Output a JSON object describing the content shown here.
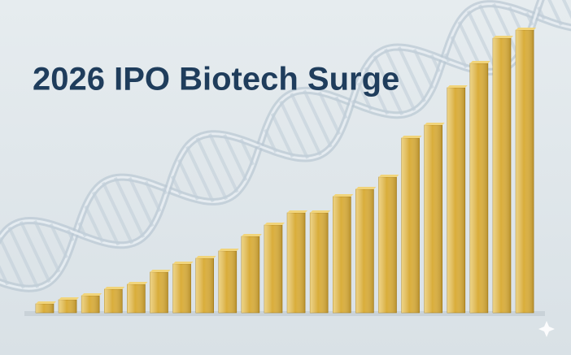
{
  "chart_data": {
    "type": "bar",
    "title": "2026 IPO Biotech Surge",
    "values": [
      11,
      16,
      21,
      29,
      35,
      50,
      60,
      67,
      76,
      94,
      108,
      123,
      123,
      143,
      152,
      167,
      215,
      231,
      277,
      307,
      338,
      348
    ],
    "color": "#d9ad3a"
  }
}
